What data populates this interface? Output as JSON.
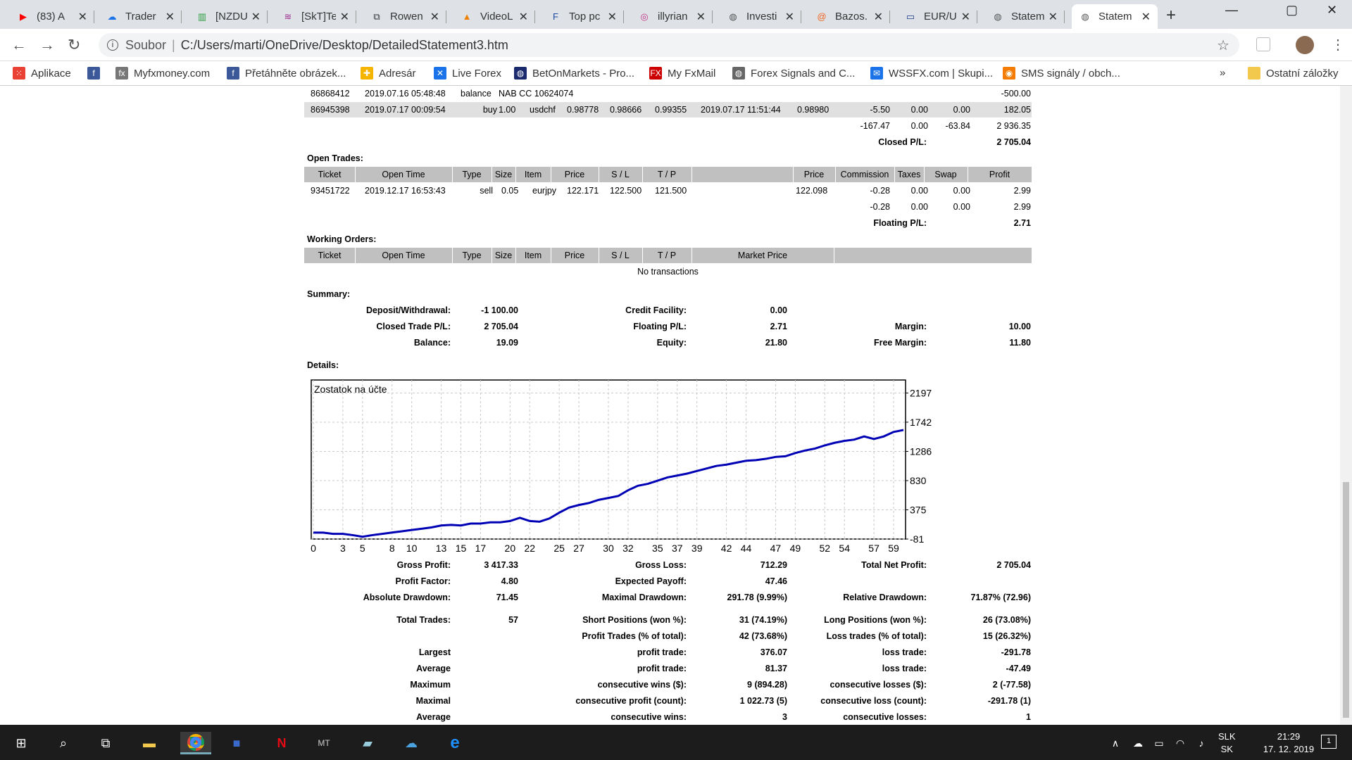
{
  "tabs": [
    {
      "label": "(83) A",
      "icon": "youtube-icon",
      "color": "#ff0000",
      "glyph": "▶"
    },
    {
      "label": "Trader",
      "icon": "cloud-icon",
      "color": "#1a73e8",
      "glyph": "☁"
    },
    {
      "label": "[NZDU",
      "icon": "chart-icon",
      "color": "#2ea043",
      "glyph": "▥"
    },
    {
      "label": "[SkT]Te",
      "icon": "chevron-logo-icon",
      "color": "#9b2d8f",
      "glyph": "≋"
    },
    {
      "label": "Rowen",
      "icon": "book-icon",
      "color": "#333",
      "glyph": "⧉"
    },
    {
      "label": "VideoL",
      "icon": "vlc-icon",
      "color": "#f08000",
      "glyph": "▲"
    },
    {
      "label": "Top pc",
      "icon": "forex-logo-icon",
      "color": "#1a4aa0",
      "glyph": "F"
    },
    {
      "label": "illyrian",
      "icon": "instagram-icon",
      "color": "#c13584",
      "glyph": "◎"
    },
    {
      "label": "Investi",
      "icon": "globe-icon",
      "color": "#555",
      "glyph": "◍"
    },
    {
      "label": "Bazos.",
      "icon": "bazos-icon",
      "color": "#f26522",
      "glyph": "@"
    },
    {
      "label": "EUR/U",
      "icon": "flag-icon",
      "color": "#1a3a8a",
      "glyph": "▭"
    },
    {
      "label": "Statem",
      "icon": "globe-icon",
      "color": "#555",
      "glyph": "◍"
    },
    {
      "label": "Statem",
      "icon": "globe-icon",
      "color": "#555",
      "glyph": "◍",
      "active": true
    }
  ],
  "address": {
    "scheme_label": "Soubor",
    "path": "C:/Users/marti/OneDrive/Desktop/DetailedStatement3.htm"
  },
  "bookmarks": [
    {
      "label": "Aplikace",
      "icon": "apps-grid-icon",
      "color": "#e94235"
    },
    {
      "label": "",
      "icon": "facebook-icon",
      "color": "#3b5998"
    },
    {
      "label": "Myfxmoney.com",
      "icon": "fx-icon",
      "color": "#777"
    },
    {
      "label": "Přetáhněte obrázek...",
      "icon": "facebook-icon",
      "color": "#3b5998"
    },
    {
      "label": "Adresár",
      "icon": "puzzle-icon",
      "color": "#f4b400"
    },
    {
      "label": "Live Forex",
      "icon": "x-logo-icon",
      "color": "#1a73e8"
    },
    {
      "label": "BetOnMarkets - Pro...",
      "icon": "globe-icon",
      "color": "#1a2a6c"
    },
    {
      "label": "My FxMail",
      "icon": "fxmail-icon",
      "color": "#c00"
    },
    {
      "label": "Forex Signals and C...",
      "icon": "globe-icon",
      "color": "#666"
    },
    {
      "label": "WSSFX.com | Skupi...",
      "icon": "message-icon",
      "color": "#1a73e8"
    },
    {
      "label": "SMS signály / obch...",
      "icon": "sms-icon",
      "color": "#f57c00"
    }
  ],
  "bookmarks_other": "Ostatní záložky",
  "closed_rows": [
    {
      "ticket": "86868412",
      "time": "2019.07.16 05:48:48",
      "type": "balance",
      "item": "NAB CC 10624074",
      "profit": "-500.00"
    },
    {
      "ticket": "86945398",
      "time": "2019.07.17 00:09:54",
      "type": "buy",
      "size": "1.00",
      "item": "usdchf",
      "price": "0.98778",
      "sl": "0.98666",
      "tp": "0.99355",
      "close_time": "2019.07.17 11:51:44",
      "close_price": "0.98980",
      "commission": "-5.50",
      "taxes": "0.00",
      "swap": "0.00",
      "profit": "182.05"
    }
  ],
  "closed_totals": {
    "commission": "-167.47",
    "taxes": "0.00",
    "swap": "-63.84",
    "profit": "2 936.35",
    "pl_label": "Closed P/L:",
    "pl_value": "2 705.04"
  },
  "open_trades": {
    "title": "Open Trades:",
    "headers": [
      "Ticket",
      "Open Time",
      "Type",
      "Size",
      "Item",
      "Price",
      "S / L",
      "T / P",
      "",
      "Price",
      "Commission",
      "Taxes",
      "Swap",
      "Profit"
    ],
    "row": {
      "ticket": "93451722",
      "time": "2019.12.17 16:53:43",
      "type": "sell",
      "size": "0.05",
      "item": "eurjpy",
      "price": "122.171",
      "sl": "122.500",
      "tp": "121.500",
      "market": "122.098",
      "commission": "-0.28",
      "taxes": "0.00",
      "swap": "0.00",
      "profit": "2.99"
    },
    "totals": {
      "commission": "-0.28",
      "taxes": "0.00",
      "swap": "0.00",
      "profit": "2.99"
    },
    "floating_label": "Floating P/L:",
    "floating_value": "2.71"
  },
  "working_orders": {
    "title": "Working Orders:",
    "headers": [
      "Ticket",
      "Open Time",
      "Type",
      "Size",
      "Item",
      "Price",
      "S / L",
      "T / P",
      "Market Price",
      ""
    ],
    "empty": "No transactions"
  },
  "summary": {
    "title": "Summary:",
    "deposit_label": "Deposit/Withdrawal:",
    "deposit": "-1 100.00",
    "credit_label": "Credit Facility:",
    "credit": "0.00",
    "closed_label": "Closed Trade P/L:",
    "closed": "2 705.04",
    "floating_label": "Floating P/L:",
    "floating": "2.71",
    "margin_label": "Margin:",
    "margin": "10.00",
    "balance_label": "Balance:",
    "balance": "19.09",
    "equity_label": "Equity:",
    "equity": "21.80",
    "free_margin_label": "Free Margin:",
    "free_margin": "11.80"
  },
  "details_title": "Details:",
  "chart_data": {
    "type": "line",
    "title": "Zostatok na účte",
    "xlabel": "",
    "ylabel": "",
    "x_ticks": [
      0,
      3,
      5,
      8,
      10,
      13,
      15,
      17,
      20,
      22,
      25,
      27,
      30,
      32,
      35,
      37,
      39,
      42,
      44,
      47,
      49,
      52,
      54,
      57,
      59
    ],
    "y_ticks": [
      2197,
      1742,
      1286,
      830,
      375,
      -81
    ],
    "ylim": [
      -81,
      2400
    ],
    "xlim": [
      0,
      60
    ],
    "color": "#0000b4",
    "x": [
      0,
      1,
      2,
      3,
      4,
      5,
      6,
      7,
      8,
      9,
      10,
      11,
      12,
      13,
      14,
      15,
      16,
      17,
      18,
      19,
      20,
      21,
      22,
      23,
      24,
      25,
      26,
      27,
      28,
      29,
      30,
      31,
      32,
      33,
      34,
      35,
      36,
      37,
      38,
      39,
      40,
      41,
      42,
      43,
      44,
      45,
      46,
      47,
      48,
      49,
      50,
      51,
      52,
      53,
      54,
      55,
      56,
      57,
      58,
      59,
      60
    ],
    "values": [
      19,
      19,
      0,
      0,
      -20,
      -45,
      -20,
      0,
      20,
      40,
      60,
      80,
      100,
      130,
      140,
      130,
      160,
      160,
      180,
      180,
      200,
      250,
      200,
      190,
      240,
      330,
      410,
      450,
      480,
      530,
      560,
      590,
      680,
      750,
      780,
      830,
      880,
      910,
      940,
      980,
      1020,
      1060,
      1080,
      1110,
      1140,
      1150,
      1170,
      1200,
      1210,
      1260,
      1300,
      1330,
      1380,
      1420,
      1450,
      1470,
      1520,
      1480,
      1520,
      1590,
      1620
    ]
  },
  "stats": {
    "gross_profit_label": "Gross Profit:",
    "gross_profit": "3 417.33",
    "gross_loss_label": "Gross Loss:",
    "gross_loss": "712.29",
    "total_net_label": "Total Net Profit:",
    "total_net": "2 705.04",
    "profit_factor_label": "Profit Factor:",
    "profit_factor": "4.80",
    "expected_payoff_label": "Expected Payoff:",
    "expected_payoff": "47.46",
    "abs_dd_label": "Absolute Drawdown:",
    "abs_dd": "71.45",
    "max_dd_label": "Maximal Drawdown:",
    "max_dd": "291.78 (9.99%)",
    "rel_dd_label": "Relative Drawdown:",
    "rel_dd": "71.87% (72.96)",
    "total_trades_label": "Total Trades:",
    "total_trades": "57",
    "short_label": "Short Positions (won %):",
    "short": "31 (74.19%)",
    "long_label": "Long Positions (won %):",
    "long": "26 (73.08%)",
    "profit_trades_label": "Profit Trades (% of total):",
    "profit_trades": "42 (73.68%)",
    "loss_trades_label": "Loss trades (% of total):",
    "loss_trades": "15 (26.32%)",
    "largest_label": "Largest",
    "largest_profit_label": "profit trade:",
    "largest_profit": "376.07",
    "largest_loss_label": "loss trade:",
    "largest_loss": "-291.78",
    "average_label": "Average",
    "average_profit_label": "profit trade:",
    "average_profit": "81.37",
    "average_loss_label": "loss trade:",
    "average_loss": "-47.49",
    "maximum_label": "Maximum",
    "max_cons_wins_label": "consecutive wins ($):",
    "max_cons_wins": "9 (894.28)",
    "max_cons_losses_label": "consecutive losses ($):",
    "max_cons_losses": "2 (-77.58)",
    "maximal_label": "Maximal",
    "maximal_cons_profit_label": "consecutive profit (count):",
    "maximal_cons_profit": "1 022.73 (5)",
    "maximal_cons_loss_label": "consecutive loss (count):",
    "maximal_cons_loss": "-291.78 (1)",
    "average2_label": "Average",
    "avg_cons_wins_label": "consecutive wins:",
    "avg_cons_wins": "3",
    "avg_cons_losses_label": "consecutive losses:",
    "avg_cons_losses": "1"
  },
  "taskbar": {
    "lang_top": "SLK",
    "lang_bottom": "SK",
    "time": "21:29",
    "date": "17. 12. 2019",
    "notif": "1"
  }
}
